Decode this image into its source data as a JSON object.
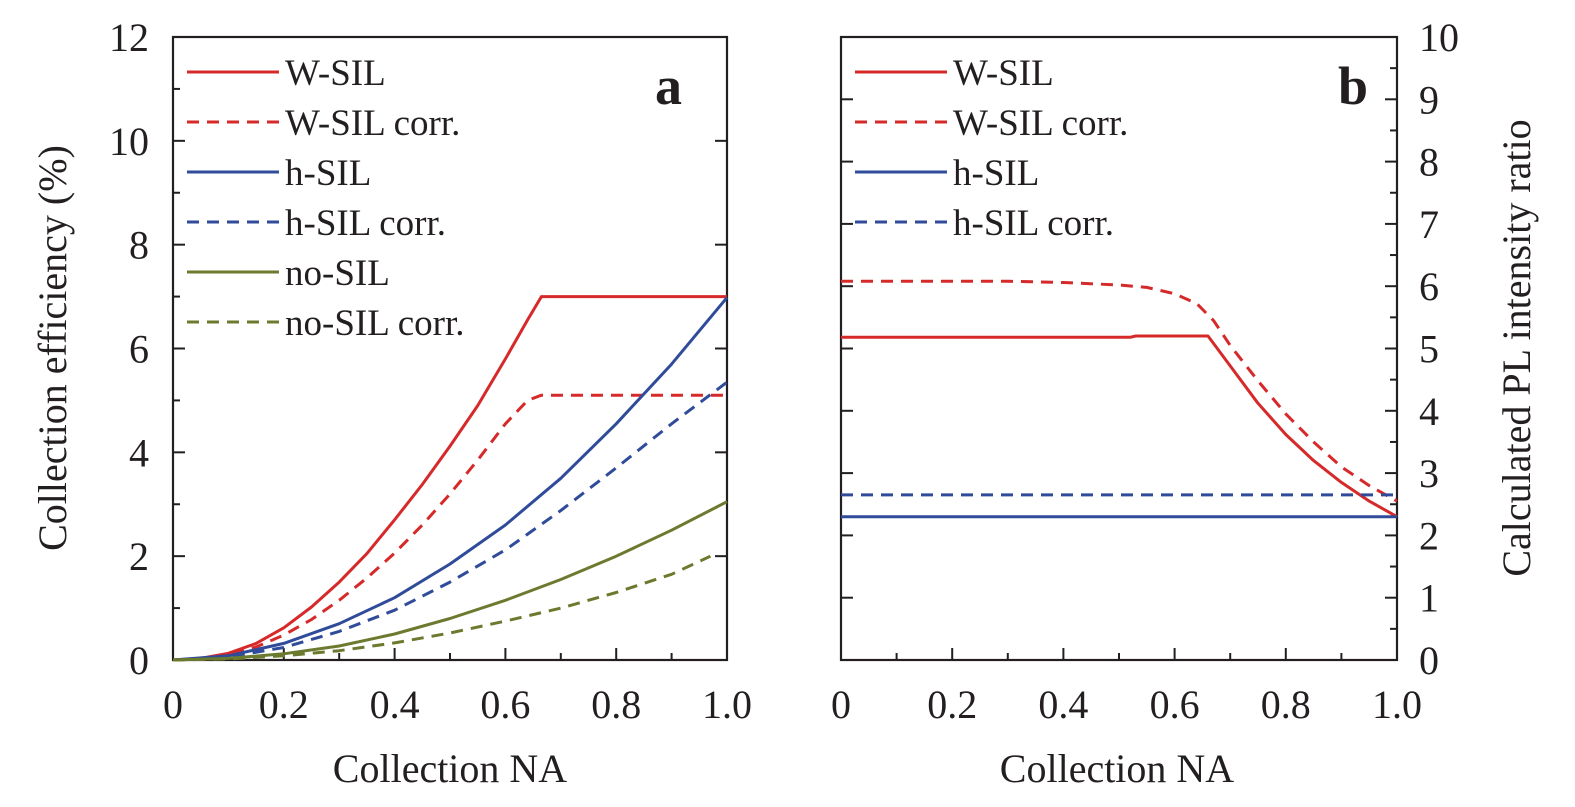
{
  "colors": {
    "red": "#d62a2a",
    "blue": "#2f4b9a",
    "olive": "#6b7a2e",
    "axis": "#231f20"
  },
  "chart_data": [
    {
      "type": "line",
      "panel_label": "a",
      "xlabel": "Collection NA",
      "ylabel": "Collection efficiency (%)",
      "xlim": [
        0,
        1.0
      ],
      "ylim": [
        0,
        12
      ],
      "x_ticks": [
        "0",
        "0.2",
        "0.4",
        "0.6",
        "0.8",
        "1.0"
      ],
      "y_ticks": [
        "0",
        "2",
        "4",
        "6",
        "8",
        "10",
        "12"
      ],
      "grid": false,
      "legend_position": "top-left",
      "series": [
        {
          "name": "W-SIL",
          "color": "red",
          "dash": "solid",
          "x": [
            0,
            0.05,
            0.1,
            0.15,
            0.2,
            0.25,
            0.3,
            0.35,
            0.4,
            0.45,
            0.5,
            0.55,
            0.6,
            0.64,
            0.665,
            0.7,
            0.8,
            0.9,
            1.0
          ],
          "y": [
            0,
            0.03,
            0.13,
            0.32,
            0.62,
            1.02,
            1.5,
            2.05,
            2.7,
            3.38,
            4.12,
            4.9,
            5.8,
            6.55,
            7.0,
            7.0,
            7.0,
            7.0,
            7.0
          ]
        },
        {
          "name": "W-SIL corr.",
          "color": "red",
          "dash": "dashed",
          "x": [
            0,
            0.05,
            0.1,
            0.15,
            0.2,
            0.25,
            0.3,
            0.35,
            0.4,
            0.45,
            0.5,
            0.55,
            0.6,
            0.64,
            0.665,
            0.7,
            0.8,
            0.9,
            1.0
          ],
          "y": [
            0,
            0.02,
            0.1,
            0.25,
            0.48,
            0.78,
            1.15,
            1.58,
            2.06,
            2.6,
            3.2,
            3.85,
            4.55,
            5.0,
            5.1,
            5.1,
            5.1,
            5.1,
            5.1
          ]
        },
        {
          "name": "h-SIL",
          "color": "blue",
          "dash": "solid",
          "x": [
            0,
            0.1,
            0.2,
            0.3,
            0.4,
            0.5,
            0.6,
            0.7,
            0.8,
            0.9,
            1.0
          ],
          "y": [
            0,
            0.08,
            0.32,
            0.7,
            1.2,
            1.85,
            2.6,
            3.5,
            4.55,
            5.7,
            6.98
          ]
        },
        {
          "name": "h-SIL corr.",
          "color": "blue",
          "dash": "dashed",
          "x": [
            0,
            0.1,
            0.2,
            0.3,
            0.4,
            0.5,
            0.6,
            0.7,
            0.8,
            0.9,
            1.0
          ],
          "y": [
            0,
            0.06,
            0.24,
            0.55,
            0.96,
            1.5,
            2.12,
            2.88,
            3.7,
            4.55,
            5.35
          ]
        },
        {
          "name": "no-SIL",
          "color": "olive",
          "dash": "solid",
          "x": [
            0,
            0.1,
            0.2,
            0.3,
            0.4,
            0.5,
            0.6,
            0.7,
            0.8,
            0.9,
            1.0
          ],
          "y": [
            0,
            0.03,
            0.12,
            0.27,
            0.5,
            0.8,
            1.15,
            1.55,
            2.0,
            2.5,
            3.05
          ]
        },
        {
          "name": "no-SIL corr.",
          "color": "olive",
          "dash": "dashed",
          "x": [
            0,
            0.1,
            0.2,
            0.3,
            0.4,
            0.5,
            0.6,
            0.7,
            0.8,
            0.9,
            0.97
          ],
          "y": [
            0,
            0.02,
            0.08,
            0.18,
            0.33,
            0.52,
            0.75,
            1.0,
            1.3,
            1.65,
            2.0
          ]
        }
      ]
    },
    {
      "type": "line",
      "panel_label": "b",
      "xlabel": "Collection NA",
      "ylabel": "Calculated PL intensity ratio",
      "xlim": [
        0,
        1.0
      ],
      "ylim": [
        0,
        10
      ],
      "x_ticks": [
        "0",
        "0.2",
        "0.4",
        "0.6",
        "0.8",
        "1.0"
      ],
      "y_ticks": [
        "0",
        "1",
        "2",
        "3",
        "4",
        "5",
        "6",
        "7",
        "8",
        "9",
        "10"
      ],
      "grid": false,
      "legend_position": "top-left",
      "series": [
        {
          "name": "W-SIL",
          "color": "red",
          "dash": "solid",
          "x": [
            0,
            0.2,
            0.4,
            0.52,
            0.53,
            0.6,
            0.66,
            0.7,
            0.75,
            0.8,
            0.85,
            0.9,
            0.95,
            1.0
          ],
          "y": [
            5.18,
            5.18,
            5.18,
            5.18,
            5.2,
            5.2,
            5.2,
            4.72,
            4.12,
            3.62,
            3.2,
            2.85,
            2.55,
            2.3
          ]
        },
        {
          "name": "W-SIL corr.",
          "color": "red",
          "dash": "dashed",
          "x": [
            0,
            0.1,
            0.2,
            0.3,
            0.4,
            0.5,
            0.55,
            0.6,
            0.64,
            0.67,
            0.7,
            0.75,
            0.8,
            0.85,
            0.9,
            0.95,
            1.0
          ],
          "y": [
            6.08,
            6.08,
            6.08,
            6.08,
            6.06,
            6.02,
            5.98,
            5.88,
            5.72,
            5.45,
            5.05,
            4.48,
            3.95,
            3.5,
            3.1,
            2.8,
            2.55
          ]
        },
        {
          "name": "h-SIL",
          "color": "blue",
          "dash": "solid",
          "x": [
            0,
            1.0
          ],
          "y": [
            2.3,
            2.3
          ]
        },
        {
          "name": "h-SIL corr.",
          "color": "blue",
          "dash": "dashed",
          "x": [
            0,
            1.0
          ],
          "y": [
            2.65,
            2.65
          ]
        }
      ]
    }
  ]
}
